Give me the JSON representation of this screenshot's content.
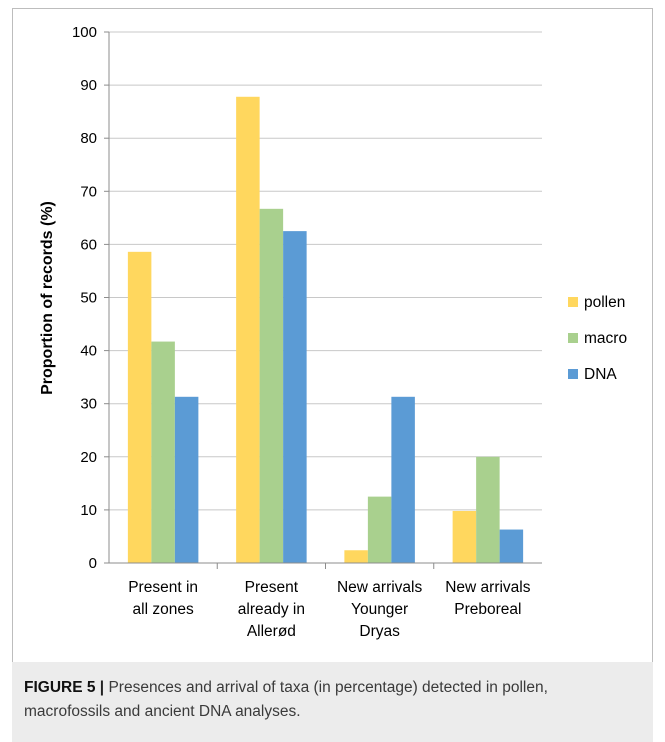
{
  "chart_data": {
    "type": "bar",
    "categories": [
      [
        "Present in",
        "all zones"
      ],
      [
        "Present",
        "already in",
        "Allerød"
      ],
      [
        "New arrivals",
        "Younger",
        "Dryas"
      ],
      [
        "New arrivals",
        "Preboreal"
      ]
    ],
    "series": [
      {
        "name": "pollen",
        "color": "#ffd75e",
        "values": [
          58.6,
          87.8,
          2.4,
          9.8
        ]
      },
      {
        "name": "macro",
        "color": "#a9d08e",
        "values": [
          41.7,
          66.7,
          12.5,
          20.0
        ]
      },
      {
        "name": "DNA",
        "color": "#5b9bd5",
        "values": [
          31.3,
          62.5,
          31.3,
          6.3
        ]
      }
    ],
    "title": "",
    "xlabel": "",
    "ylabel": "Proportion of records (%)",
    "ylim": [
      0,
      100
    ],
    "yticks": [
      0,
      10,
      20,
      30,
      40,
      50,
      60,
      70,
      80,
      90,
      100
    ],
    "grid": true,
    "legend_position": "right"
  },
  "caption": {
    "label": "FIGURE 5",
    "separator": "|",
    "text": " Presences and arrival of taxa (in percentage) detected in pollen, macrofossils and ancient DNA analyses."
  }
}
